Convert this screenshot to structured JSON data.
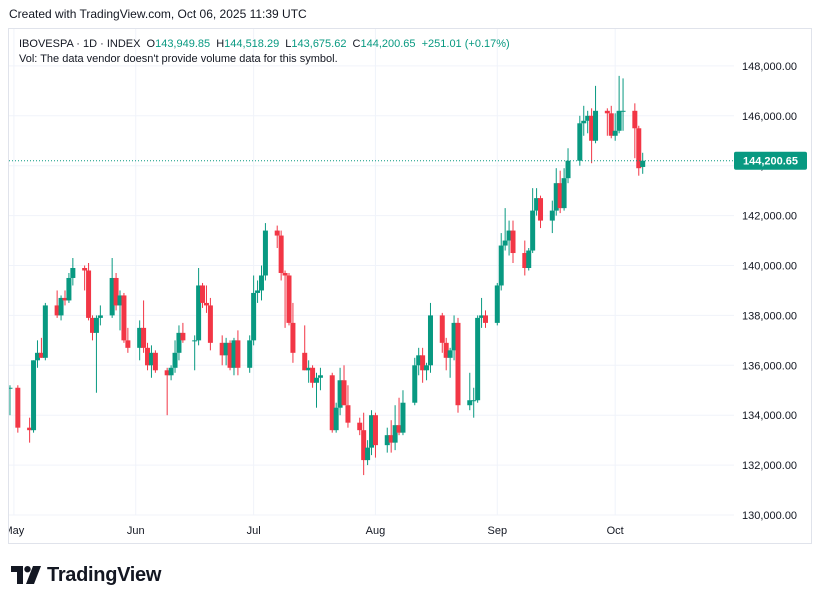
{
  "header": {
    "created_text": "Created with TradingView.com, Oct 06, 2025 11:39 UTC"
  },
  "legend": {
    "symbol": "IBOVESPA · 1D · INDEX",
    "o_label": "O",
    "o_value": "143,949.85",
    "h_label": "H",
    "h_value": "144,518.29",
    "l_label": "L",
    "l_value": "143,675.62",
    "c_label": "C",
    "c_value": "144,200.65",
    "change": "+251.01 (+0.17%)",
    "volume_note": "Vol: The data vendor doesn't provide volume data for this symbol."
  },
  "last_price_label": "144,200.65",
  "branding": {
    "text": "TradingView"
  },
  "colors": {
    "up": "#089981",
    "down": "#f23645",
    "grid": "#f0f3fa",
    "text": "#131722",
    "last_price_line": "#089981"
  },
  "chart_data": {
    "type": "candlestick",
    "title": "IBOVESPA · 1D · INDEX",
    "ylim": [
      130000,
      148500
    ],
    "y_ticks": [
      130000,
      132000,
      134000,
      136000,
      138000,
      140000,
      142000,
      144000,
      146000,
      148000
    ],
    "y_tick_labels": [
      "130,000.00",
      "132,000.00",
      "134,000.00",
      "136,000.00",
      "138,000.00",
      "140,000.00",
      "142,000.00",
      "144,000.00",
      "146,000.00",
      "148,000.00"
    ],
    "x_ticks": [
      {
        "label": "May",
        "date": "2025-05-01"
      },
      {
        "label": "Jun",
        "date": "2025-06-01"
      },
      {
        "label": "Jul",
        "date": "2025-07-01"
      },
      {
        "label": "Aug",
        "date": "2025-08-01"
      },
      {
        "label": "Sep",
        "date": "2025-09-01"
      },
      {
        "label": "Oct",
        "date": "2025-10-01"
      }
    ],
    "grid": true,
    "last_price": 144200.65,
    "candles": [
      {
        "date": "2025-04-30",
        "o": 135100,
        "h": 135200,
        "l": 134000,
        "c": 135100
      },
      {
        "date": "2025-05-02",
        "o": 135100,
        "h": 135200,
        "l": 133300,
        "c": 133500
      },
      {
        "date": "2025-05-05",
        "o": 133500,
        "h": 133900,
        "l": 132900,
        "c": 133400
      },
      {
        "date": "2025-05-06",
        "o": 133400,
        "h": 136200,
        "l": 133300,
        "c": 136200
      },
      {
        "date": "2025-05-07",
        "o": 136200,
        "h": 137000,
        "l": 135900,
        "c": 136500
      },
      {
        "date": "2025-05-08",
        "o": 136500,
        "h": 137100,
        "l": 136300,
        "c": 136300
      },
      {
        "date": "2025-05-09",
        "o": 136300,
        "h": 138500,
        "l": 136200,
        "c": 138400
      },
      {
        "date": "2025-05-12",
        "o": 138400,
        "h": 139000,
        "l": 137900,
        "c": 138000
      },
      {
        "date": "2025-05-13",
        "o": 138000,
        "h": 138800,
        "l": 137800,
        "c": 138700
      },
      {
        "date": "2025-05-14",
        "o": 138700,
        "h": 139000,
        "l": 138400,
        "c": 138600
      },
      {
        "date": "2025-05-15",
        "o": 138600,
        "h": 139700,
        "l": 138500,
        "c": 139500
      },
      {
        "date": "2025-05-16",
        "o": 139500,
        "h": 140300,
        "l": 139200,
        "c": 139900
      },
      {
        "date": "2025-05-19",
        "o": 139900,
        "h": 140000,
        "l": 139000,
        "c": 139800
      },
      {
        "date": "2025-05-20",
        "o": 139800,
        "h": 140100,
        "l": 137800,
        "c": 137900
      },
      {
        "date": "2025-05-21",
        "o": 137900,
        "h": 138000,
        "l": 137000,
        "c": 137300
      },
      {
        "date": "2025-05-22",
        "o": 137300,
        "h": 138000,
        "l": 134900,
        "c": 137900
      },
      {
        "date": "2025-05-23",
        "o": 137900,
        "h": 138400,
        "l": 137600,
        "c": 138000
      },
      {
        "date": "2025-05-26",
        "o": 138000,
        "h": 140300,
        "l": 137900,
        "c": 139500
      },
      {
        "date": "2025-05-27",
        "o": 139500,
        "h": 139700,
        "l": 138200,
        "c": 138400
      },
      {
        "date": "2025-05-28",
        "o": 138400,
        "h": 139000,
        "l": 137400,
        "c": 138800
      },
      {
        "date": "2025-05-29",
        "o": 138800,
        "h": 138900,
        "l": 136900,
        "c": 137000
      },
      {
        "date": "2025-05-30",
        "o": 137000,
        "h": 137500,
        "l": 136500,
        "c": 136700
      },
      {
        "date": "2025-06-02",
        "o": 136700,
        "h": 137800,
        "l": 136200,
        "c": 137500
      },
      {
        "date": "2025-06-03",
        "o": 137500,
        "h": 138600,
        "l": 136500,
        "c": 136700
      },
      {
        "date": "2025-06-04",
        "o": 136700,
        "h": 136900,
        "l": 135800,
        "c": 136000
      },
      {
        "date": "2025-06-05",
        "o": 136000,
        "h": 136800,
        "l": 135500,
        "c": 136500
      },
      {
        "date": "2025-06-06",
        "o": 136500,
        "h": 136600,
        "l": 135700,
        "c": 135800
      },
      {
        "date": "2025-06-09",
        "o": 135800,
        "h": 135900,
        "l": 134000,
        "c": 135600
      },
      {
        "date": "2025-06-10",
        "o": 135600,
        "h": 136000,
        "l": 135400,
        "c": 135900
      },
      {
        "date": "2025-06-11",
        "o": 135900,
        "h": 137000,
        "l": 135700,
        "c": 136500
      },
      {
        "date": "2025-06-12",
        "o": 136500,
        "h": 137600,
        "l": 136200,
        "c": 137300
      },
      {
        "date": "2025-06-13",
        "o": 137300,
        "h": 137700,
        "l": 136900,
        "c": 137000
      },
      {
        "date": "2025-06-16",
        "o": 137000,
        "h": 137200,
        "l": 135800,
        "c": 137000
      },
      {
        "date": "2025-06-17",
        "o": 137000,
        "h": 139900,
        "l": 136800,
        "c": 139200
      },
      {
        "date": "2025-06-18",
        "o": 139200,
        "h": 139300,
        "l": 138300,
        "c": 138500
      },
      {
        "date": "2025-06-19",
        "o": 138500,
        "h": 139200,
        "l": 138100,
        "c": 138400
      },
      {
        "date": "2025-06-20",
        "o": 138400,
        "h": 138700,
        "l": 136600,
        "c": 136900
      },
      {
        "date": "2025-06-23",
        "o": 136900,
        "h": 137200,
        "l": 136000,
        "c": 136400
      },
      {
        "date": "2025-06-24",
        "o": 136400,
        "h": 137100,
        "l": 136000,
        "c": 136900
      },
      {
        "date": "2025-06-25",
        "o": 136900,
        "h": 137000,
        "l": 135800,
        "c": 135900
      },
      {
        "date": "2025-06-26",
        "o": 135900,
        "h": 137100,
        "l": 135600,
        "c": 137000
      },
      {
        "date": "2025-06-27",
        "o": 137000,
        "h": 137400,
        "l": 135600,
        "c": 135900
      },
      {
        "date": "2025-06-30",
        "o": 135900,
        "h": 137200,
        "l": 135700,
        "c": 137000
      },
      {
        "date": "2025-07-01",
        "o": 137000,
        "h": 139600,
        "l": 136800,
        "c": 138900
      },
      {
        "date": "2025-07-02",
        "o": 138900,
        "h": 139400,
        "l": 138500,
        "c": 139000
      },
      {
        "date": "2025-07-03",
        "o": 139000,
        "h": 140000,
        "l": 138600,
        "c": 139600
      },
      {
        "date": "2025-07-04",
        "o": 139600,
        "h": 141700,
        "l": 139400,
        "c": 141400
      },
      {
        "date": "2025-07-07",
        "o": 141400,
        "h": 141600,
        "l": 140700,
        "c": 141200
      },
      {
        "date": "2025-07-08",
        "o": 141200,
        "h": 141400,
        "l": 139400,
        "c": 139700
      },
      {
        "date": "2025-07-09",
        "o": 139700,
        "h": 139800,
        "l": 137500,
        "c": 139600
      },
      {
        "date": "2025-07-10",
        "o": 139600,
        "h": 139700,
        "l": 137600,
        "c": 137700
      },
      {
        "date": "2025-07-11",
        "o": 137700,
        "h": 138500,
        "l": 136100,
        "c": 136500
      },
      {
        "date": "2025-07-14",
        "o": 136500,
        "h": 137600,
        "l": 135800,
        "c": 135800
      },
      {
        "date": "2025-07-15",
        "o": 135800,
        "h": 136200,
        "l": 135300,
        "c": 135900
      },
      {
        "date": "2025-07-16",
        "o": 135900,
        "h": 136000,
        "l": 135100,
        "c": 135300
      },
      {
        "date": "2025-07-17",
        "o": 135300,
        "h": 135700,
        "l": 134300,
        "c": 135500
      },
      {
        "date": "2025-07-18",
        "o": 135500,
        "h": 135900,
        "l": 135000,
        "c": 135600
      },
      {
        "date": "2025-07-21",
        "o": 135600,
        "h": 135700,
        "l": 133300,
        "c": 133400
      },
      {
        "date": "2025-07-22",
        "o": 133400,
        "h": 134500,
        "l": 133300,
        "c": 134300
      },
      {
        "date": "2025-07-23",
        "o": 134300,
        "h": 135900,
        "l": 134000,
        "c": 135400
      },
      {
        "date": "2025-07-24",
        "o": 135400,
        "h": 136000,
        "l": 134400,
        "c": 134400
      },
      {
        "date": "2025-07-25",
        "o": 134400,
        "h": 135200,
        "l": 133500,
        "c": 133700
      },
      {
        "date": "2025-07-28",
        "o": 133700,
        "h": 133900,
        "l": 133200,
        "c": 133400
      },
      {
        "date": "2025-07-29",
        "o": 133400,
        "h": 134100,
        "l": 131600,
        "c": 132200
      },
      {
        "date": "2025-07-30",
        "o": 132200,
        "h": 133000,
        "l": 132000,
        "c": 132700
      },
      {
        "date": "2025-07-31",
        "o": 132700,
        "h": 134200,
        "l": 132400,
        "c": 134000
      },
      {
        "date": "2025-08-01",
        "o": 134000,
        "h": 134100,
        "l": 132300,
        "c": 132800
      },
      {
        "date": "2025-08-04",
        "o": 132800,
        "h": 133500,
        "l": 132500,
        "c": 133200
      },
      {
        "date": "2025-08-05",
        "o": 133200,
        "h": 133800,
        "l": 132500,
        "c": 132900
      },
      {
        "date": "2025-08-06",
        "o": 132900,
        "h": 134400,
        "l": 132600,
        "c": 133600
      },
      {
        "date": "2025-08-07",
        "o": 133600,
        "h": 134700,
        "l": 133200,
        "c": 133300
      },
      {
        "date": "2025-08-08",
        "o": 133300,
        "h": 135000,
        "l": 133200,
        "c": 134500
      },
      {
        "date": "2025-08-11",
        "o": 134500,
        "h": 136300,
        "l": 134400,
        "c": 136000
      },
      {
        "date": "2025-08-12",
        "o": 136000,
        "h": 136700,
        "l": 135600,
        "c": 136400
      },
      {
        "date": "2025-08-13",
        "o": 136400,
        "h": 136700,
        "l": 135300,
        "c": 135800
      },
      {
        "date": "2025-08-14",
        "o": 135800,
        "h": 136100,
        "l": 135400,
        "c": 136000
      },
      {
        "date": "2025-08-15",
        "o": 136000,
        "h": 138500,
        "l": 135700,
        "c": 138000
      },
      {
        "date": "2025-08-18",
        "o": 138000,
        "h": 138100,
        "l": 136500,
        "c": 136900
      },
      {
        "date": "2025-08-19",
        "o": 136900,
        "h": 137100,
        "l": 135800,
        "c": 136300
      },
      {
        "date": "2025-08-20",
        "o": 136300,
        "h": 136700,
        "l": 135500,
        "c": 136600
      },
      {
        "date": "2025-08-21",
        "o": 136600,
        "h": 138000,
        "l": 136200,
        "c": 137700
      },
      {
        "date": "2025-08-22",
        "o": 137700,
        "h": 137900,
        "l": 134100,
        "c": 134400
      },
      {
        "date": "2025-08-25",
        "o": 134400,
        "h": 135700,
        "l": 134200,
        "c": 134600
      },
      {
        "date": "2025-08-26",
        "o": 134600,
        "h": 135100,
        "l": 133900,
        "c": 134600
      },
      {
        "date": "2025-08-27",
        "o": 134600,
        "h": 138000,
        "l": 134500,
        "c": 137900
      },
      {
        "date": "2025-08-28",
        "o": 137900,
        "h": 138700,
        "l": 137500,
        "c": 138000
      },
      {
        "date": "2025-08-29",
        "o": 138000,
        "h": 138200,
        "l": 137500,
        "c": 137700
      },
      {
        "date": "2025-09-01",
        "o": 137700,
        "h": 139300,
        "l": 137600,
        "c": 139200
      },
      {
        "date": "2025-09-02",
        "o": 139200,
        "h": 141300,
        "l": 139000,
        "c": 140800
      },
      {
        "date": "2025-09-03",
        "o": 140800,
        "h": 142300,
        "l": 140600,
        "c": 141000
      },
      {
        "date": "2025-09-04",
        "o": 141000,
        "h": 141800,
        "l": 140400,
        "c": 141400
      },
      {
        "date": "2025-09-05",
        "o": 141400,
        "h": 141800,
        "l": 140100,
        "c": 140500
      },
      {
        "date": "2025-09-08",
        "o": 140500,
        "h": 141000,
        "l": 139600,
        "c": 139900
      },
      {
        "date": "2025-09-09",
        "o": 139900,
        "h": 140700,
        "l": 139800,
        "c": 140600
      },
      {
        "date": "2025-09-10",
        "o": 140600,
        "h": 143100,
        "l": 140500,
        "c": 142200
      },
      {
        "date": "2025-09-11",
        "o": 142200,
        "h": 143100,
        "l": 142000,
        "c": 142700
      },
      {
        "date": "2025-09-12",
        "o": 142700,
        "h": 142800,
        "l": 141500,
        "c": 141800
      },
      {
        "date": "2025-09-15",
        "o": 141800,
        "h": 142600,
        "l": 141300,
        "c": 142200
      },
      {
        "date": "2025-09-16",
        "o": 142200,
        "h": 143900,
        "l": 142000,
        "c": 143300
      },
      {
        "date": "2025-09-17",
        "o": 143300,
        "h": 143800,
        "l": 142100,
        "c": 142300
      },
      {
        "date": "2025-09-18",
        "o": 142300,
        "h": 143900,
        "l": 142200,
        "c": 143500
      },
      {
        "date": "2025-09-19",
        "o": 143500,
        "h": 144700,
        "l": 143300,
        "c": 144200
      },
      {
        "date": "2025-09-22",
        "o": 144200,
        "h": 146000,
        "l": 144000,
        "c": 145700
      },
      {
        "date": "2025-09-23",
        "o": 145700,
        "h": 146400,
        "l": 145200,
        "c": 145800
      },
      {
        "date": "2025-09-24",
        "o": 145800,
        "h": 146200,
        "l": 145300,
        "c": 146000
      },
      {
        "date": "2025-09-25",
        "o": 146000,
        "h": 146300,
        "l": 144100,
        "c": 145000
      },
      {
        "date": "2025-09-26",
        "o": 145000,
        "h": 147200,
        "l": 144900,
        "c": 146200
      },
      {
        "date": "2025-09-29",
        "o": 146200,
        "h": 146300,
        "l": 145200,
        "c": 146100
      },
      {
        "date": "2025-09-30",
        "o": 146100,
        "h": 146400,
        "l": 145100,
        "c": 145200
      },
      {
        "date": "2025-10-01",
        "o": 145200,
        "h": 146100,
        "l": 145000,
        "c": 145400
      },
      {
        "date": "2025-10-02",
        "o": 145400,
        "h": 147600,
        "l": 145300,
        "c": 146200
      },
      {
        "date": "2025-10-03",
        "o": 146200,
        "h": 147500,
        "l": 145400,
        "c": 146200
      },
      {
        "date": "2025-10-06",
        "o": 146200,
        "h": 146500,
        "l": 144300,
        "c": 145500
      },
      {
        "date": "2025-10-07",
        "o": 145500,
        "h": 145600,
        "l": 143600,
        "c": 143900
      },
      {
        "date": "2025-10-08",
        "o": 143949.85,
        "h": 144518.29,
        "l": 143675.62,
        "c": 144200.65
      }
    ]
  }
}
